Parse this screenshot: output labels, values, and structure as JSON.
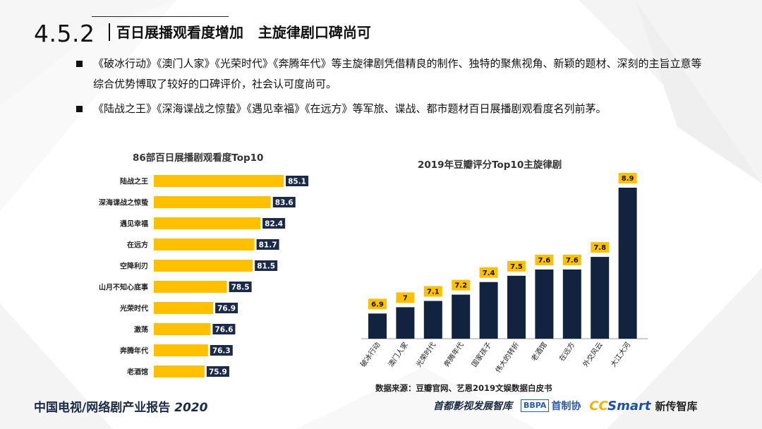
{
  "header": {
    "section_number": "4.5.2",
    "title": "百日展播观看度增加   主旋律剧口碑尚可"
  },
  "bullets": [
    "《破冰行动》《澳门人家》《光荣时代》《奔腾年代》等主旋律剧凭借精良的制作、独特的聚焦视角、新颖的题材、深刻的主旨立意等综合优势博取了较好的口碑评价，社会认可度尚可。",
    "《陆战之王》《深海谍战之惊蛰》《遇见幸福》《在远方》等军旅、谍战、都市题材百日展播剧观看度名列前茅。"
  ],
  "source_note": "数据来源：豆瓣官网、艺恩2019文娱数据白皮书",
  "footer": {
    "report_title": "中国电视/网络剧产业报告 ",
    "report_year": "2020",
    "logo1": "首都影视发展智库",
    "logo2_box": "BBPA",
    "logo2_text": "首制协",
    "logo3_mark_cc": "CC",
    "logo3_mark_smart": "Smart",
    "logo3_text": "新传智库"
  },
  "colors": {
    "bar_yellow": "#ffc000",
    "label_navy": "#1b2a48",
    "bar_navy": "#12233f"
  },
  "chart_data": [
    {
      "type": "bar",
      "orientation": "horizontal",
      "title": "86部百日展播剧观看度Top10",
      "categories": [
        "陆战之王",
        "深海谍战之惊蛰",
        "遇见幸福",
        "在远方",
        "空降利刃",
        "山月不知心底事",
        "光荣时代",
        "激荡",
        "奔腾年代",
        "老酒馆"
      ],
      "values": [
        85.1,
        83.6,
        82.4,
        81.7,
        81.5,
        78.5,
        76.9,
        76.6,
        76.3,
        75.9
      ],
      "value_labels": [
        "85.1",
        "83.6",
        "82.4",
        "81.7",
        "81.5",
        "78.5",
        "76.9",
        "76.6",
        "76.3",
        "75.9"
      ],
      "xlim": [
        70,
        86
      ],
      "grid": false,
      "legend": "none"
    },
    {
      "type": "bar",
      "orientation": "vertical",
      "title": "2019年豆瓣评分Top10主旋律剧",
      "categories": [
        "破冰行动",
        "澳门人家",
        "光荣时代",
        "奔腾年代",
        "国家孩子",
        "伟大的转折",
        "老酒馆",
        "在远方",
        "外交风云",
        "大江大河"
      ],
      "values": [
        6.9,
        7.0,
        7.1,
        7.2,
        7.4,
        7.5,
        7.6,
        7.6,
        7.8,
        8.9
      ],
      "value_labels": [
        "6.9",
        "7",
        "7.1",
        "7.2",
        "7.4",
        "7.5",
        "7.6",
        "7.6",
        "7.8",
        "8.9"
      ],
      "ylim": [
        6.5,
        8.9
      ],
      "grid": false,
      "legend": "none"
    }
  ]
}
